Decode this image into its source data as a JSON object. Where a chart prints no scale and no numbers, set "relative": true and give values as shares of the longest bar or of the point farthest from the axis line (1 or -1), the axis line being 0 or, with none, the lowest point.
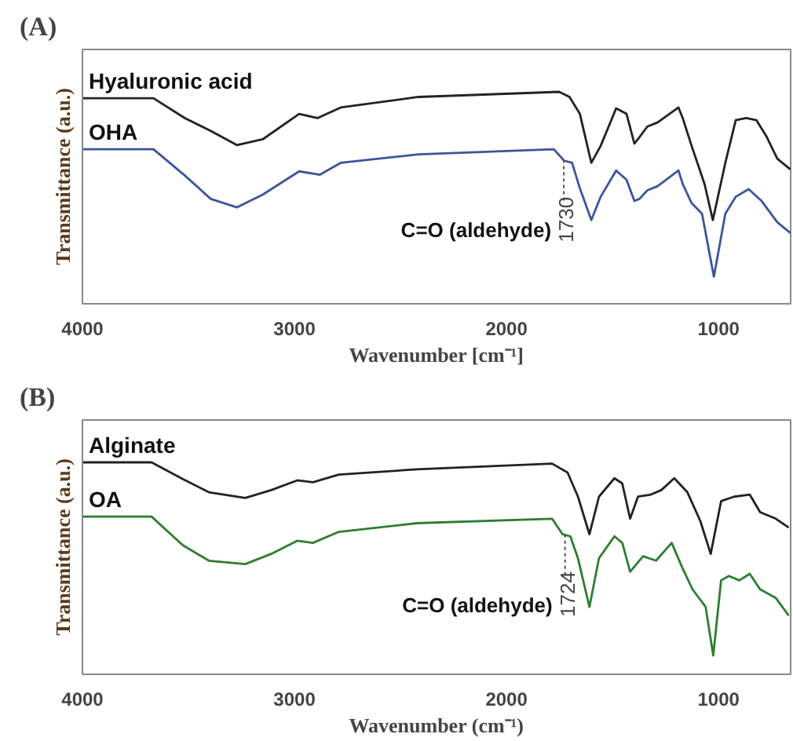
{
  "chart_data": [
    {
      "type": "line",
      "title": "(A)",
      "xlabel": "Wavenumber [cm⁻¹]",
      "ylabel": "Transmittance (a.u.)",
      "relative": true,
      "xlim": [
        4000,
        660
      ],
      "xticks": [
        4000,
        3000,
        2000,
        1000
      ],
      "tick_labels": "x",
      "grid": false,
      "series": [
        {
          "name": "Hyaluronic acid",
          "color": "#222222",
          "x": [
            4000,
            3665,
            3517,
            3395,
            3272,
            3150,
            2978,
            2892,
            2782,
            2414,
            1752,
            1703,
            1654,
            1600,
            1556,
            1483,
            1434,
            1397,
            1373,
            1336,
            1287,
            1189,
            1169,
            1127,
            1066,
            1027,
            968,
            919,
            870,
            821,
            772,
            723,
            662
          ],
          "values": [
            0.97,
            0.97,
            0.876,
            0.816,
            0.749,
            0.776,
            0.896,
            0.876,
            0.926,
            0.976,
            1.0,
            0.976,
            0.896,
            0.665,
            0.745,
            0.922,
            0.896,
            0.756,
            0.786,
            0.836,
            0.856,
            0.926,
            0.876,
            0.745,
            0.565,
            0.395,
            0.665,
            0.866,
            0.876,
            0.866,
            0.786,
            0.685,
            0.635
          ]
        },
        {
          "name": "OHA",
          "color": "#3a559a",
          "x": [
            4000,
            3665,
            3517,
            3395,
            3272,
            3150,
            2978,
            2880,
            2782,
            2414,
            1777,
            1728,
            1691,
            1654,
            1600,
            1556,
            1483,
            1434,
            1397,
            1373,
            1336,
            1287,
            1189,
            1169,
            1127,
            1078,
            1022,
            968,
            919,
            858,
            797,
            723,
            662
          ],
          "values": [
            0.729,
            0.729,
            0.605,
            0.495,
            0.455,
            0.515,
            0.625,
            0.609,
            0.665,
            0.705,
            0.729,
            0.675,
            0.665,
            0.545,
            0.395,
            0.505,
            0.629,
            0.585,
            0.485,
            0.495,
            0.535,
            0.555,
            0.629,
            0.565,
            0.475,
            0.425,
            0.128,
            0.425,
            0.505,
            0.541,
            0.485,
            0.385,
            0.335
          ]
        }
      ],
      "ref_lines": [
        {
          "axis": "x",
          "value": 1730,
          "label": "1730",
          "line_style": "dashed"
        }
      ],
      "annotations": [
        "C=O (aldehyde)"
      ]
    },
    {
      "type": "line",
      "title": "(B)",
      "xlabel": "Wavenumber (cm⁻¹)",
      "ylabel": "Transmittance (a.u.)",
      "relative": true,
      "xlim": [
        4000,
        660
      ],
      "xticks": [
        4000,
        3000,
        2000,
        1000
      ],
      "tick_labels": "x",
      "grid": false,
      "series": [
        {
          "name": "Alginate",
          "color": "#222222",
          "x": [
            4000,
            3674,
            3527,
            3404,
            3232,
            3110,
            2987,
            2913,
            2791,
            2423,
            1785,
            1712,
            1663,
            1609,
            1564,
            1491,
            1454,
            1417,
            1380,
            1319,
            1270,
            1209,
            1147,
            1086,
            1037,
            988,
            927,
            853,
            804,
            730,
            669
          ],
          "values": [
            1.0,
            1.0,
            0.921,
            0.859,
            0.832,
            0.869,
            0.915,
            0.906,
            0.942,
            0.967,
            0.994,
            0.952,
            0.838,
            0.661,
            0.838,
            0.925,
            0.9,
            0.734,
            0.838,
            0.848,
            0.869,
            0.925,
            0.859,
            0.723,
            0.568,
            0.817,
            0.838,
            0.848,
            0.765,
            0.734,
            0.692
          ]
        },
        {
          "name": "OA",
          "color": "#2e7d32",
          "x": [
            4000,
            3674,
            3527,
            3404,
            3232,
            3110,
            2987,
            2913,
            2791,
            2423,
            1785,
            1736,
            1699,
            1663,
            1609,
            1564,
            1491,
            1454,
            1417,
            1356,
            1295,
            1221,
            1172,
            1123,
            1061,
            1025,
            988,
            951,
            902,
            853,
            804,
            730,
            669
          ],
          "values": [
            0.744,
            0.744,
            0.609,
            0.536,
            0.52,
            0.568,
            0.63,
            0.62,
            0.672,
            0.713,
            0.734,
            0.661,
            0.651,
            0.547,
            0.318,
            0.547,
            0.651,
            0.62,
            0.484,
            0.557,
            0.536,
            0.62,
            0.505,
            0.401,
            0.318,
            0.089,
            0.443,
            0.464,
            0.443,
            0.474,
            0.401,
            0.36,
            0.277
          ]
        }
      ],
      "ref_lines": [
        {
          "axis": "x",
          "value": 1724,
          "label": "1724",
          "line_style": "dashed"
        }
      ],
      "annotations": [
        "C=O (aldehyde)"
      ]
    }
  ]
}
